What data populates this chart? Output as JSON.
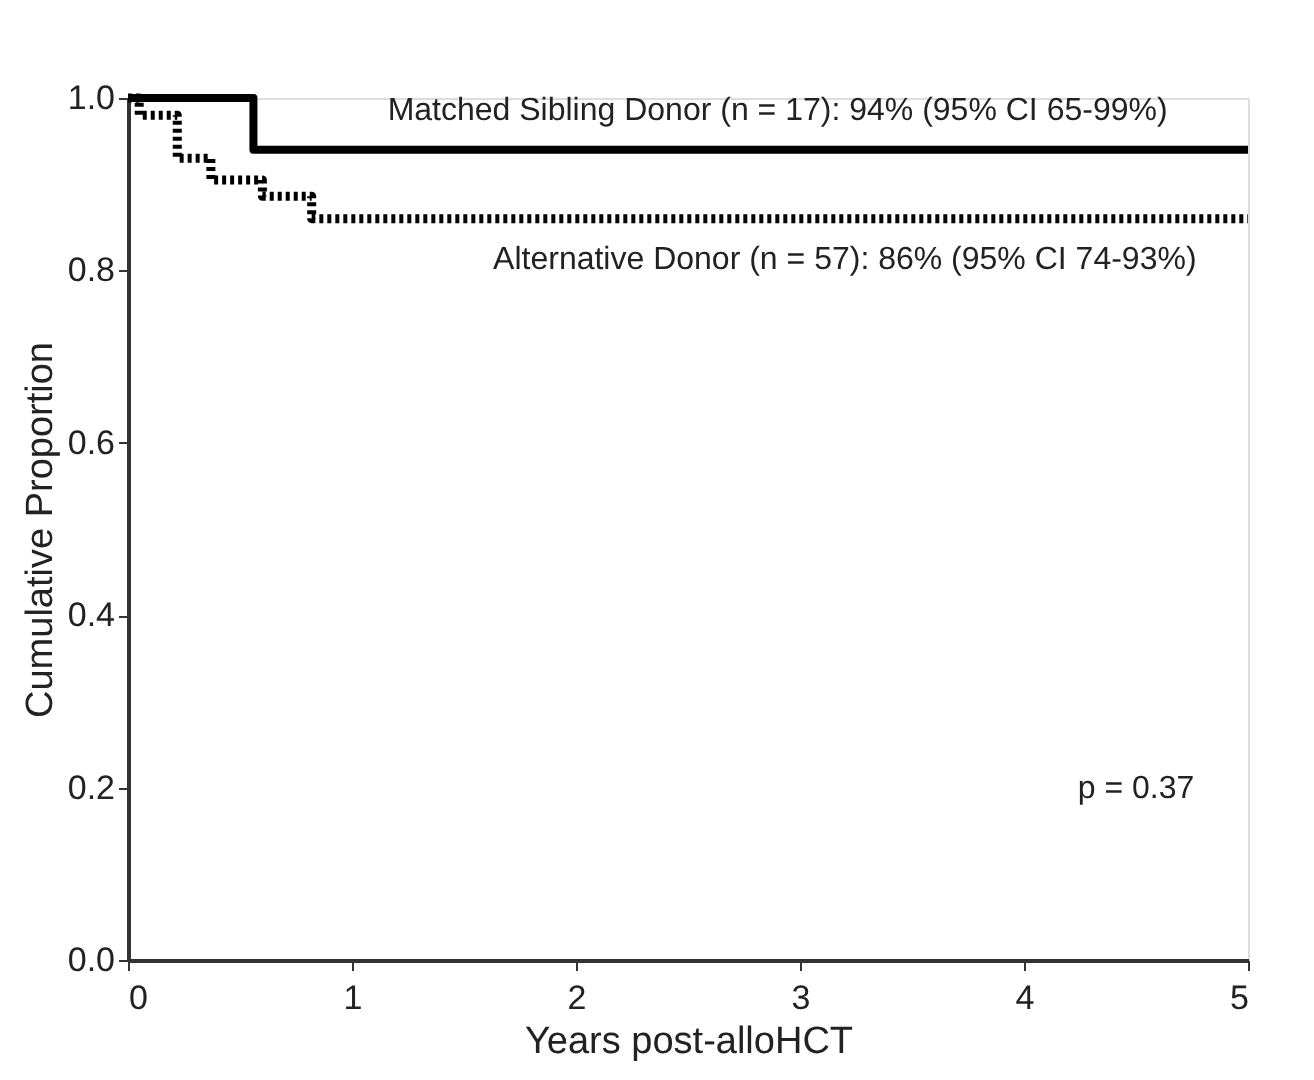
{
  "chart_data": {
    "type": "step",
    "xlabel": "Years post-alloHCT",
    "ylabel": "Cumulative Proportion",
    "xlim": [
      0,
      5
    ],
    "ylim": [
      0,
      1.0
    ],
    "xticks": [
      0,
      1,
      2,
      3,
      4,
      5
    ],
    "yticks": [
      {
        "value": 0,
        "label": "0.0"
      },
      0.2,
      0.4,
      0.6,
      0.8,
      {
        "value": 1,
        "label": "1.0"
      }
    ],
    "grid": false,
    "marker": "none",
    "series": [
      {
        "color": "#000000",
        "line_style": "solid",
        "x": [
          0,
          0.56,
          5
        ],
        "values": [
          1.0,
          0.94,
          0.94
        ]
      },
      {
        "color": "#000000",
        "line_style": "dotted",
        "x": [
          0,
          0.05,
          0.22,
          0.37,
          0.6,
          0.82,
          5
        ],
        "values": [
          1.0,
          0.98,
          0.93,
          0.905,
          0.886,
          0.86,
          0.86
        ]
      }
    ],
    "annotations": [
      {
        "text": "Matched Sibling Donor (n = 17): 94% (95% CI 65-99%)",
        "x": 2.9,
        "y": 0.94
      },
      {
        "text": "Alternative Donor (n = 57): 86% (95% CI 74-93%)",
        "x": 3.2,
        "y": 0.86
      },
      "p = 0.37"
    ]
  }
}
